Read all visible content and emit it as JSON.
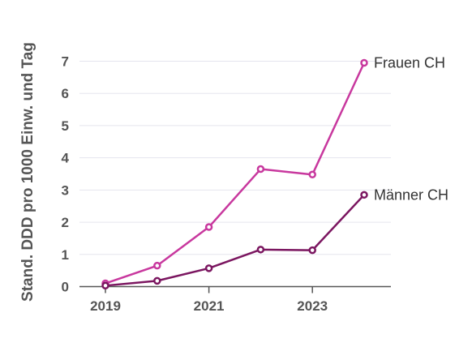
{
  "chart_data": {
    "type": "line",
    "title": "",
    "xlabel": "",
    "ylabel": "Stand. DDD pro 1000 Einw. und Tag",
    "x": [
      2019,
      2020,
      2021,
      2022,
      2023,
      2024
    ],
    "xticks": [
      "2019",
      "2021",
      "2023"
    ],
    "yticks": [
      "0",
      "1",
      "2",
      "3",
      "4",
      "5",
      "6",
      "7"
    ],
    "ylim": [
      0,
      7
    ],
    "grid": true,
    "legend": "labels at line ends",
    "series": [
      {
        "name": "Frauen CH",
        "color": "#c8389e",
        "values": [
          0.1,
          0.65,
          1.85,
          3.65,
          3.48,
          6.95
        ]
      },
      {
        "name": "Männer CH",
        "color": "#7b1660",
        "values": [
          0.03,
          0.18,
          0.57,
          1.15,
          1.13,
          2.85
        ]
      }
    ]
  }
}
